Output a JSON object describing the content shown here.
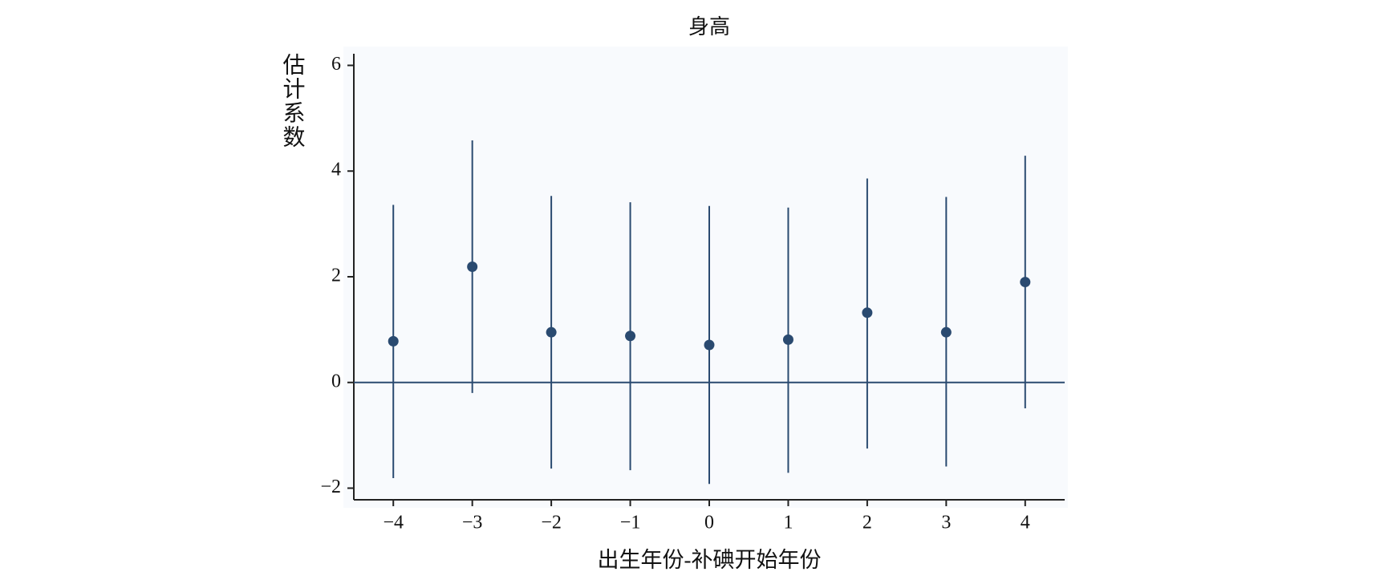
{
  "chart_data": {
    "type": "errorbar",
    "title": "身高",
    "xlabel": "出生年份-补碘开始年份",
    "ylabel": "估计系数",
    "x": [
      -4,
      -3,
      -2,
      -1,
      0,
      1,
      2,
      3,
      4
    ],
    "series": [
      {
        "color": "#2a4a70",
        "values": [
          0.78,
          2.19,
          0.95,
          0.88,
          0.71,
          0.81,
          1.32,
          0.95,
          1.9
        ],
        "lower": [
          -1.81,
          -0.2,
          -1.63,
          -1.66,
          -1.92,
          -1.71,
          -1.25,
          -1.59,
          -0.49
        ],
        "upper": [
          3.36,
          4.58,
          3.53,
          3.41,
          3.34,
          3.31,
          3.86,
          3.51,
          4.29
        ]
      }
    ],
    "reference_line": 0,
    "xlim": [
      -4.5,
      4.5
    ],
    "xticks": [
      {
        "value": -4,
        "label": "−4"
      },
      {
        "value": -3,
        "label": "−3"
      },
      {
        "value": -2,
        "label": "−2"
      },
      {
        "value": -1,
        "label": "−1"
      },
      0,
      1,
      2,
      3,
      4
    ],
    "ylim": [
      -2.22,
      6.22
    ],
    "yticks": [
      {
        "value": -2,
        "label": "−2"
      },
      0,
      2,
      4,
      6
    ]
  }
}
